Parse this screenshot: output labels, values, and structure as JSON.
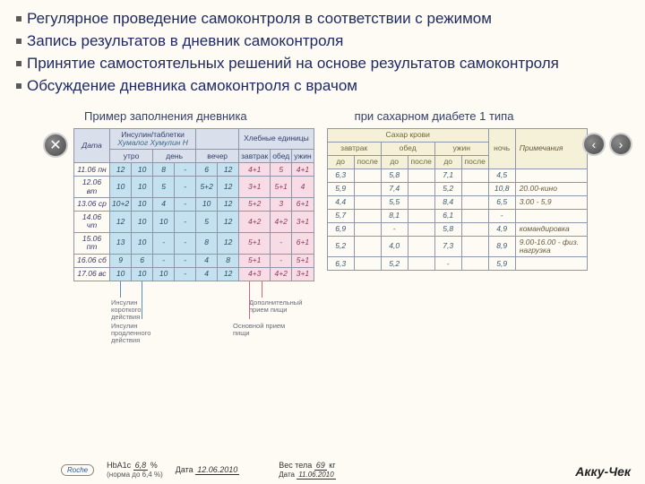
{
  "bullets": [
    "Регулярное проведение самоконтроля в соответствии с режимом",
    "Запись результатов в дневник самоконтроля",
    "Принятие самостоятельных решений на основе результатов самоконтроля",
    "Обсуждение дневника самоконтроля с врачом"
  ],
  "heading": {
    "left": "Пример заполнения дневника",
    "right": "при сахарном диабете 1 типа"
  },
  "table1": {
    "group_headers": {
      "date": "Дата",
      "insulin": "Инсулин/таблетки",
      "handwr": "Хумалог Хумулин Н",
      "bread": "Хлебные единицы"
    },
    "insulin_cols": [
      "утро",
      "день",
      "вечер"
    ],
    "bread_cols": [
      "завтрак",
      "обед",
      "ужин"
    ],
    "rows": [
      {
        "date": "11.06 пн",
        "ins": [
          "12",
          "10",
          "8",
          "-",
          "6",
          "12"
        ],
        "bread": [
          "4+1",
          "5",
          "4+1"
        ]
      },
      {
        "date": "12.06 вт",
        "ins": [
          "10",
          "10",
          "5",
          "-",
          "5+2",
          "12"
        ],
        "bread": [
          "3+1",
          "5+1",
          "4"
        ]
      },
      {
        "date": "13.06 ср",
        "ins": [
          "10+2",
          "10",
          "4",
          "-",
          "10",
          "12"
        ],
        "bread": [
          "5+2",
          "3",
          "6+1"
        ]
      },
      {
        "date": "14.06 чт",
        "ins": [
          "12",
          "10",
          "10",
          "-",
          "5",
          "12"
        ],
        "bread": [
          "4+2",
          "4+2",
          "3+1"
        ]
      },
      {
        "date": "15.06 пт",
        "ins": [
          "13",
          "10",
          "-",
          "-",
          "8",
          "12"
        ],
        "bread": [
          "5+1",
          "-",
          "6+1"
        ]
      },
      {
        "date": "16.06 сб",
        "ins": [
          "9",
          "6",
          "-",
          "-",
          "4",
          "8"
        ],
        "bread": [
          "5+1",
          "-",
          "5+1"
        ]
      },
      {
        "date": "17.06 вс",
        "ins": [
          "10",
          "10",
          "10",
          "-",
          "4",
          "12"
        ],
        "bread": [
          "4+3",
          "4+2",
          "3+1"
        ]
      }
    ]
  },
  "table2": {
    "group_headers": {
      "sugar": "Сахар крови",
      "night": "ночь",
      "notes": "Примечания"
    },
    "meal_cols": [
      "завтрак",
      "обед",
      "ужин"
    ],
    "sub_cols": [
      "до",
      "после"
    ],
    "rows": [
      {
        "vals": [
          "6,3",
          "",
          "5,8",
          "",
          "7,1",
          "",
          "4,5"
        ],
        "note": ""
      },
      {
        "vals": [
          "5,9",
          "",
          "7,4",
          "",
          "5,2",
          "",
          "10,8"
        ],
        "note": "20.00-кино"
      },
      {
        "vals": [
          "4,4",
          "",
          "5,5",
          "",
          "8,4",
          "",
          "6,5"
        ],
        "note": "3.00 - 5,9"
      },
      {
        "vals": [
          "5,7",
          "",
          "8,1",
          "",
          "6,1",
          "",
          "-"
        ],
        "note": ""
      },
      {
        "vals": [
          "6,9",
          "",
          "-",
          "",
          "5,8",
          "",
          "4,9"
        ],
        "note": "командировка"
      },
      {
        "vals": [
          "5,2",
          "",
          "4,0",
          "",
          "7,3",
          "",
          "8,9"
        ],
        "note": "9.00-16.00 - физ. нагрузка"
      },
      {
        "vals": [
          "6,3",
          "",
          "5,2",
          "",
          "-",
          "",
          "5,9"
        ],
        "note": ""
      }
    ]
  },
  "annotations": {
    "a1": "Инсулин короткого действия",
    "a2": "Инсулин продленного действия",
    "a3": "Дополнительный прием пищи",
    "a4": "Основной прием пищи"
  },
  "footer": {
    "logo": "Roche",
    "hba1c_label": "HbA1c",
    "hba1c_val": "6,8",
    "pct": "%",
    "norm": "(норма до 6,4 %)",
    "date1_label": "Дата",
    "date1_val": "12.06.2010",
    "weight_label": "Вес тела",
    "weight_val": "69",
    "kg": "кг",
    "date2_label": "Дата",
    "date2_val": "11.06.2010",
    "brand": "Акку-Чек"
  },
  "colors": {
    "line_blue": "#5a8fb0",
    "line_red": "#c06a8a"
  }
}
